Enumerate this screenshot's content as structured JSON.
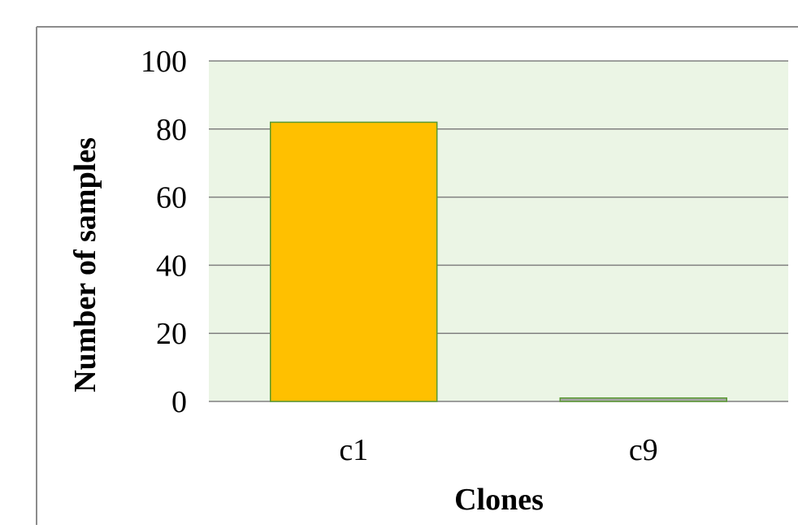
{
  "chart_data": {
    "type": "bar",
    "title": "",
    "xlabel": "Clones",
    "ylabel": "Number of samples",
    "categories": [
      "c1",
      "c9"
    ],
    "values": [
      82,
      1
    ],
    "ylim": [
      0,
      100
    ],
    "yticks": [
      "0",
      "20",
      "40",
      "60",
      "80",
      "100"
    ],
    "grid": true,
    "legend": "none"
  },
  "colors": {
    "plot_background": "#EBF5E5",
    "gridline": "#808080",
    "frame": "#8C8C8C",
    "bar_outline": "#5A9A32",
    "bar_fills": [
      "#FFC000",
      "#A6A6A6"
    ]
  }
}
